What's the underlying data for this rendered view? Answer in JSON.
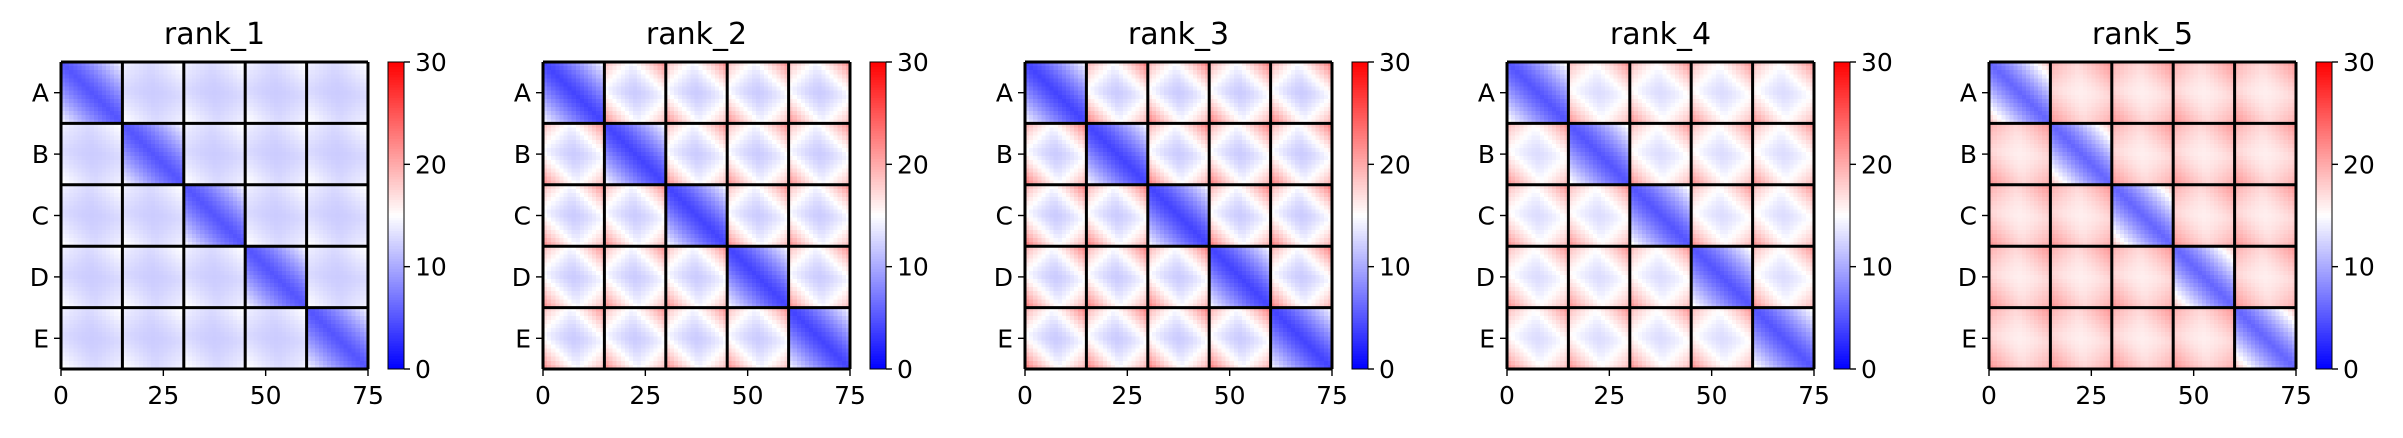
{
  "chart_data": {
    "type": "heatmap",
    "colormap": "bwr",
    "color_range": [
      0,
      30
    ],
    "colorbar_ticks": [
      0,
      10,
      20,
      30
    ],
    "block_labels": [
      "A",
      "B",
      "C",
      "D",
      "E"
    ],
    "x_ticks": [
      0,
      25,
      50,
      75
    ],
    "x_range": [
      0,
      75
    ],
    "matrix_size": 75,
    "block_size": 15,
    "grid": false,
    "panels": [
      {
        "title": "rank_1",
        "diag_value": 5,
        "offdiag_value": 12,
        "edge_value": 15
      },
      {
        "title": "rank_2",
        "diag_value": 4,
        "offdiag_value": 12,
        "edge_value": 21
      },
      {
        "title": "rank_3",
        "diag_value": 4,
        "offdiag_value": 12,
        "edge_value": 22
      },
      {
        "title": "rank_4",
        "diag_value": 5,
        "offdiag_value": 13,
        "edge_value": 21
      },
      {
        "title": "rank_5",
        "diag_value": 6,
        "offdiag_value": 16,
        "edge_value": 21
      }
    ]
  }
}
